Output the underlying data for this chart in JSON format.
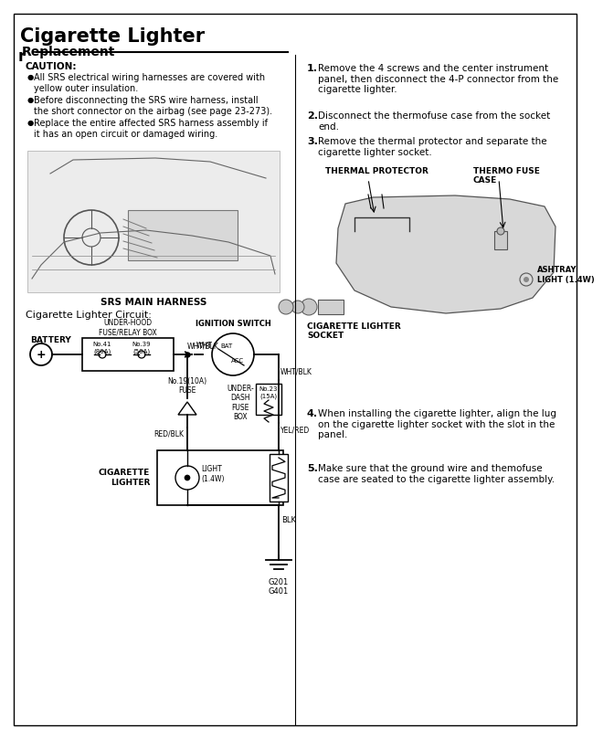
{
  "title": "Cigarette Lighter",
  "subtitle": "Replacement",
  "bg_color": "#ffffff",
  "caution_header": "CAUTION:",
  "caution_items": [
    "All SRS electrical wiring harnesses are covered with\nyellow outer insulation.",
    "Before disconnecting the SRS wire harness, install\nthe short connector on the airbag (see page 23-273).",
    "Replace the entire affected SRS harness assembly if\nit has an open circuit or damaged wiring."
  ],
  "step1": "Remove the 4 screws and the center instrument\npanel, then disconnect the 4-P connector from the\ncigarette lighter.",
  "step2": "Disconnect the thermofuse case from the socket\nend.",
  "step3": "Remove the thermal protector and separate the\ncigarette lighter socket.",
  "step4": "When installing the cigarette lighter, align the lug\non the cigarette lighter socket with the slot in the\npanel.",
  "step5": "Make sure that the ground wire and themofuse\ncase are seated to the cigarette lighter assembly.",
  "circuit_label": "Cigarette Lighter Circuit:",
  "srs_label": "SRS MAIN HARNESS",
  "battery_label": "BATTERY",
  "fuse_box_label": "UNDER-HOOD\nFUSE/RELAY BOX",
  "fuse41_label": "No.41\n(80A)",
  "fuse39_label": "No.39\n(50A)",
  "ign_label": "IGNITION SWITCH",
  "wht_blk_label": "WHT/BLK",
  "wht_label": "WHT",
  "bat_label": "BAT",
  "acc_label": "ACC",
  "fuse19_label": "No.19(10A)\nFUSE",
  "under_dash_label": "UNDER-\nDASH\nFUSE\nBOX",
  "fuse23_label": "No.23\n(15A)",
  "red_blk_label": "RED/BLK",
  "yel_red_label": "YEL/RED",
  "cig_lighter_label": "CIGARETTE\nLIGHTER",
  "light_label": "LIGHT\n(1.4W)",
  "blk_label": "BLK",
  "ground_label": "G201\nG401",
  "thermal_label": "THERMAL PROTECTOR",
  "thermo_fuse_label": "THERMO FUSE\nCASE",
  "ashtray_label": "ASHTRAY\nLIGHT (1.4W)",
  "cig_socket_label": "CIGARETTE LIGHTER\nSOCKET"
}
